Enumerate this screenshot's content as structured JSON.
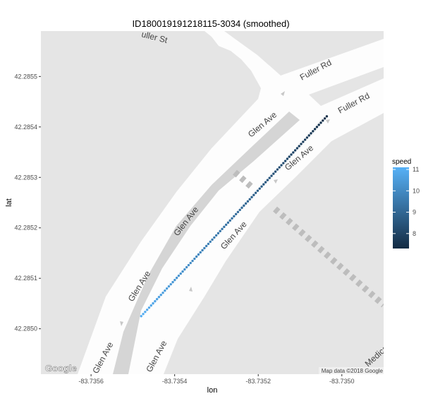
{
  "chart_data": {
    "type": "scatter",
    "title": "ID180019191218115-3034  (smoothed)",
    "xlabel": "lon",
    "ylabel": "lat",
    "xlim": [
      -83.73572,
      -83.7349
    ],
    "ylim": [
      42.28491,
      42.28559
    ],
    "x_ticks": [
      -83.7356,
      -83.7354,
      -83.7352,
      -83.735
    ],
    "x_tick_labels": [
      "-83.7356",
      "-83.7354",
      "-83.7352",
      "-83.7350"
    ],
    "y_ticks": [
      42.285,
      42.2851,
      42.2852,
      42.2853,
      42.2854,
      42.2855
    ],
    "y_tick_labels": [
      "42.2850",
      "42.2851",
      "42.2852",
      "42.2853",
      "42.2854",
      "42.2855"
    ],
    "grid": false,
    "legend": {
      "title": "speed",
      "position": "right",
      "range": [
        7.3,
        11.1
      ],
      "breaks": [
        8,
        9,
        10,
        11
      ],
      "break_labels": [
        "8",
        "9",
        "10",
        "11"
      ],
      "color_low": "#132b43",
      "color_high": "#56b1f7"
    },
    "series": [
      {
        "start": {
          "lon": -83.73548,
          "lat": 42.285025,
          "speed": 11.0
        },
        "end": {
          "lon": -83.735036,
          "lat": 42.285421,
          "speed": 7.4
        },
        "n_points": 95
      }
    ],
    "map": {
      "streets": [
        {
          "name": "Glen Ave"
        },
        {
          "name": "Glen Ave"
        },
        {
          "name": "Glen Ave"
        },
        {
          "name": "Glen Ave"
        },
        {
          "name": "Glen Ave"
        },
        {
          "name": "Glen Ave"
        },
        {
          "name": "Glen Ave"
        },
        {
          "name": "Fuller Rd"
        },
        {
          "name": "Fuller Rd"
        },
        {
          "name": "uller St"
        },
        {
          "name": "Medical C"
        }
      ],
      "watermark": "Google",
      "attribution": "Map data ©2018 Google",
      "colors": {
        "block": "#e5e5e5",
        "road": "#fdfdfd",
        "median": "#d5d5d5",
        "crosswalk": "#bdbdbd"
      }
    }
  }
}
